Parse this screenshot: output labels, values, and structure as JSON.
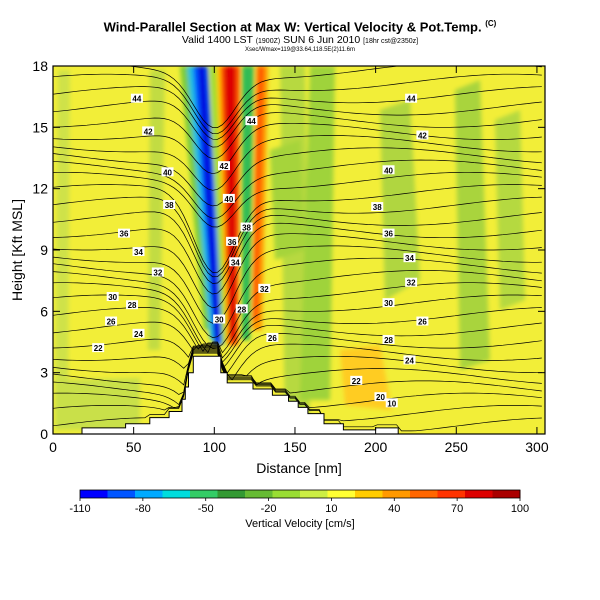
{
  "header": {
    "title": "Wind-Parallel Section at Max W: Vertical Velocity & Pot.Temp.",
    "title_badge": "(C)",
    "valid_main_a": "Valid 1400 LST",
    "valid_small_a": "(1900Z)",
    "valid_main_b": "SUN 6 Jun 2010",
    "valid_small_b": "[18hr cst@2350z]",
    "info": "Xsec/Wmax=119@33.64,118.5E(2)11.6m"
  },
  "colorbar": {
    "title": "Vertical Velocity [cm/s]",
    "tick_labels": [
      "-110",
      "-80",
      "-50",
      "-20",
      "10",
      "40",
      "70",
      "100"
    ],
    "colors": [
      "#0000ff",
      "#0055ff",
      "#00aaff",
      "#00dddd",
      "#33cc66",
      "#339933",
      "#66bb33",
      "#99dd33",
      "#ccee44",
      "#ffff33",
      "#ffcc00",
      "#ff9900",
      "#ff6600",
      "#ff3300",
      "#dd0000",
      "#aa0000"
    ]
  },
  "chart_data": {
    "type": "heatmap",
    "title": "Wind-Parallel Section at Max W: Vertical Velocity & Pot.Temp.",
    "xlabel": "Distance [nm]",
    "ylabel": "Height [Kft MSL]",
    "xlim": [
      0,
      305
    ],
    "ylim": [
      0,
      18
    ],
    "x_ticks": [
      0,
      50,
      100,
      150,
      200,
      250,
      300
    ],
    "y_ticks": [
      0,
      3,
      6,
      9,
      12,
      15,
      18
    ],
    "grid": false,
    "terrain": [
      [
        0,
        0
      ],
      [
        18,
        0
      ],
      [
        18,
        0.3
      ],
      [
        45,
        0.3
      ],
      [
        45,
        0.5
      ],
      [
        60,
        0.5
      ],
      [
        60,
        0.8
      ],
      [
        72,
        0.8
      ],
      [
        72,
        1.1
      ],
      [
        80,
        1.1
      ],
      [
        80,
        1.7
      ],
      [
        82,
        1.7
      ],
      [
        82,
        2.3
      ],
      [
        84,
        2.3
      ],
      [
        84,
        3.0
      ],
      [
        87,
        3.0
      ],
      [
        87,
        3.8
      ],
      [
        104,
        3.8
      ],
      [
        104,
        3.0
      ],
      [
        108,
        3.0
      ],
      [
        108,
        2.5
      ],
      [
        124,
        2.5
      ],
      [
        124,
        2.2
      ],
      [
        136,
        2.2
      ],
      [
        136,
        1.9
      ],
      [
        146,
        1.9
      ],
      [
        146,
        1.6
      ],
      [
        152,
        1.6
      ],
      [
        152,
        1.3
      ],
      [
        158,
        1.3
      ],
      [
        158,
        1.0
      ],
      [
        168,
        1.0
      ],
      [
        168,
        0.5
      ],
      [
        180,
        0.5
      ],
      [
        180,
        0.2
      ],
      [
        200,
        0.2
      ],
      [
        200,
        0.3
      ],
      [
        214,
        0.3
      ],
      [
        214,
        0
      ],
      [
        305,
        0
      ]
    ],
    "theta_contour_labels": [
      {
        "value": "44",
        "x": 52,
        "y": 16.4
      },
      {
        "value": "44",
        "x": 123,
        "y": 15.3
      },
      {
        "value": "44",
        "x": 222,
        "y": 16.4
      },
      {
        "value": "42",
        "x": 59,
        "y": 14.8
      },
      {
        "value": "42",
        "x": 106,
        "y": 13.1
      },
      {
        "value": "42",
        "x": 229,
        "y": 14.6
      },
      {
        "value": "40",
        "x": 71,
        "y": 12.8
      },
      {
        "value": "40",
        "x": 109,
        "y": 11.5
      },
      {
        "value": "40",
        "x": 208,
        "y": 12.9
      },
      {
        "value": "38",
        "x": 72,
        "y": 11.2
      },
      {
        "value": "38",
        "x": 120,
        "y": 10.1
      },
      {
        "value": "38",
        "x": 201,
        "y": 11.1
      },
      {
        "value": "36",
        "x": 44,
        "y": 9.8
      },
      {
        "value": "36",
        "x": 111,
        "y": 9.4
      },
      {
        "value": "36",
        "x": 208,
        "y": 9.8
      },
      {
        "value": "34",
        "x": 53,
        "y": 8.9
      },
      {
        "value": "34",
        "x": 113,
        "y": 8.4
      },
      {
        "value": "34",
        "x": 221,
        "y": 8.6
      },
      {
        "value": "32",
        "x": 65,
        "y": 7.9
      },
      {
        "value": "32",
        "x": 131,
        "y": 7.1
      },
      {
        "value": "32",
        "x": 222,
        "y": 7.4
      },
      {
        "value": "30",
        "x": 37,
        "y": 6.7
      },
      {
        "value": "30",
        "x": 103,
        "y": 5.6
      },
      {
        "value": "30",
        "x": 208,
        "y": 6.4
      },
      {
        "value": "28",
        "x": 49,
        "y": 6.3
      },
      {
        "value": "28",
        "x": 117,
        "y": 6.1
      },
      {
        "value": "28",
        "x": 208,
        "y": 4.6
      },
      {
        "value": "26",
        "x": 36,
        "y": 5.5
      },
      {
        "value": "26",
        "x": 136,
        "y": 4.7
      },
      {
        "value": "26",
        "x": 229,
        "y": 5.5
      },
      {
        "value": "24",
        "x": 53,
        "y": 4.9
      },
      {
        "value": "24",
        "x": 221,
        "y": 3.6
      },
      {
        "value": "22",
        "x": 28,
        "y": 4.2
      },
      {
        "value": "22",
        "x": 188,
        "y": 2.6
      },
      {
        "value": "20",
        "x": 203,
        "y": 1.8
      },
      {
        "value": "10",
        "x": 210,
        "y": 1.5
      }
    ]
  }
}
